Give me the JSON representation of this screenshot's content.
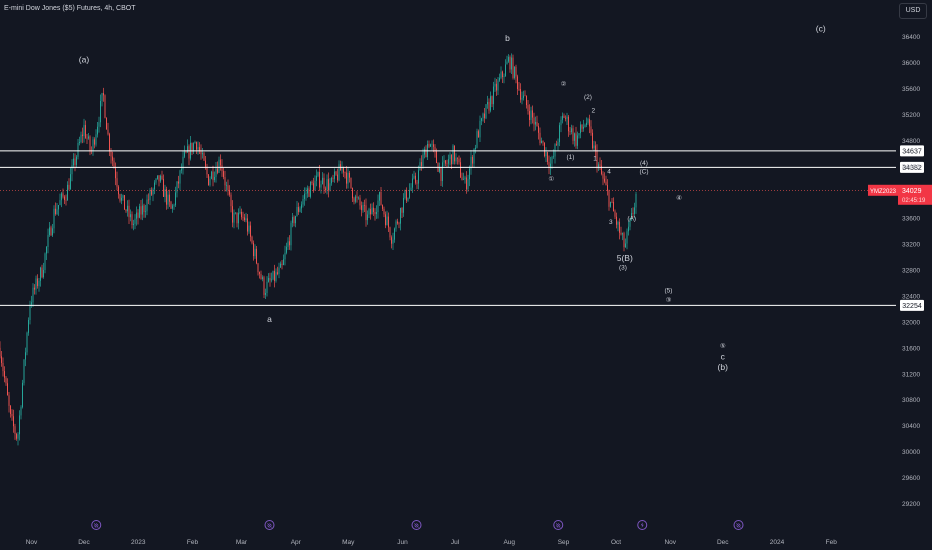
{
  "header": {
    "title": "E-mini Dow Jones ($5) Futures, 4h, CBOT",
    "currency_button": "USD"
  },
  "colors": {
    "background": "#131722",
    "up": "#26a69a",
    "down": "#ef5350",
    "text": "#d1d4dc",
    "axis_text": "#b2b5be",
    "level_line": "#ffffff",
    "event_icon": "#7e57c2",
    "price_badge": "#f23645"
  },
  "icons": [
    "event-icon",
    "lightning-icon"
  ],
  "chart_data": {
    "type": "candlestick",
    "symbol": "YMZ2023",
    "last_price": "34029",
    "countdown": "02:45:19",
    "y_range": [
      29070,
      36620
    ],
    "y_ticks": [
      29200,
      29600,
      30000,
      30400,
      30800,
      31200,
      31600,
      32000,
      32400,
      32800,
      33200,
      33600,
      34000,
      34400,
      34800,
      35200,
      35600,
      36000,
      36400
    ],
    "x_ticks": [
      "Nov",
      "Dec",
      "2023",
      "Feb",
      "Mar",
      "Apr",
      "May",
      "Jun",
      "Jul",
      "Aug",
      "Sep",
      "Oct",
      "Nov",
      "Dec",
      "2024",
      "Feb"
    ],
    "x_range": [
      "2022-10-14",
      "2024-03-09"
    ],
    "horizontal_levels": [
      {
        "label": "34637",
        "price": 34637
      },
      {
        "label": "34382",
        "price": 34382
      },
      {
        "label": "32254",
        "price": 32254
      }
    ],
    "price_path": [
      [
        "2022-10-14",
        31600
      ],
      [
        "2022-10-20",
        30500
      ],
      [
        "2022-10-24",
        30200
      ],
      [
        "2022-10-31",
        32300
      ],
      [
        "2022-11-07",
        32800
      ],
      [
        "2022-11-14",
        33700
      ],
      [
        "2022-11-21",
        34000
      ],
      [
        "2022-11-28",
        34700
      ],
      [
        "2022-12-01",
        35000
      ],
      [
        "2022-12-05",
        34600
      ],
      [
        "2022-12-12",
        35500
      ],
      [
        "2022-12-15",
        34800
      ],
      [
        "2022-12-22",
        33900
      ],
      [
        "2022-12-29",
        33500
      ],
      [
        "2023-01-05",
        33800
      ],
      [
        "2023-01-13",
        34200
      ],
      [
        "2023-01-20",
        33700
      ],
      [
        "2023-01-27",
        34500
      ],
      [
        "2023-02-03",
        34800
      ],
      [
        "2023-02-10",
        34200
      ],
      [
        "2023-02-17",
        34500
      ],
      [
        "2023-02-24",
        33600
      ],
      [
        "2023-03-03",
        33600
      ],
      [
        "2023-03-08",
        33100
      ],
      [
        "2023-03-14",
        32500
      ],
      [
        "2023-03-17",
        32600
      ],
      [
        "2023-03-24",
        32800
      ],
      [
        "2023-03-31",
        33600
      ],
      [
        "2023-04-07",
        34000
      ],
      [
        "2023-04-14",
        34200
      ],
      [
        "2023-04-21",
        34100
      ],
      [
        "2023-04-28",
        34400
      ],
      [
        "2023-05-05",
        33900
      ],
      [
        "2023-05-12",
        33600
      ],
      [
        "2023-05-19",
        33900
      ],
      [
        "2023-05-26",
        33300
      ],
      [
        "2023-06-02",
        33900
      ],
      [
        "2023-06-09",
        34200
      ],
      [
        "2023-06-16",
        34800
      ],
      [
        "2023-06-23",
        34300
      ],
      [
        "2023-06-30",
        34600
      ],
      [
        "2023-07-07",
        34100
      ],
      [
        "2023-07-14",
        34900
      ],
      [
        "2023-07-21",
        35400
      ],
      [
        "2023-07-28",
        35800
      ],
      [
        "2023-08-01",
        36050
      ],
      [
        "2023-08-08",
        35500
      ],
      [
        "2023-08-15",
        35100
      ],
      [
        "2023-08-22",
        34600
      ],
      [
        "2023-08-25",
        34400
      ],
      [
        "2023-09-01",
        35200
      ],
      [
        "2023-09-08",
        34800
      ],
      [
        "2023-09-14",
        35100
      ],
      [
        "2023-09-21",
        34400
      ],
      [
        "2023-09-27",
        33900
      ],
      [
        "2023-10-04",
        33300
      ],
      [
        "2023-10-06",
        33150
      ],
      [
        "2023-10-10",
        33600
      ],
      [
        "2023-10-13",
        34029
      ]
    ],
    "wave_labels": [
      {
        "text": "(a)",
        "date": "2022-12-01",
        "price": 36000
      },
      {
        "text": "a",
        "date": "2023-03-17",
        "price": 32000
      },
      {
        "text": "b",
        "date": "2023-07-31",
        "price": 36330
      },
      {
        "text": "(c)",
        "date": "2024-01-26",
        "price": 36480
      },
      {
        "text": "(b)",
        "date": "2023-12-01",
        "price": 31260
      },
      {
        "text": "c",
        "date": "2023-12-01",
        "price": 31420
      },
      {
        "text": "⑤",
        "date": "2023-12-01",
        "price": 31600
      },
      {
        "text": "④",
        "date": "2023-11-06",
        "price": 33880
      },
      {
        "text": "(5)",
        "date": "2023-10-31",
        "price": 32450
      },
      {
        "text": "③",
        "date": "2023-10-31",
        "price": 32310
      },
      {
        "text": "①",
        "date": "2023-08-25",
        "price": 34170
      },
      {
        "text": "②",
        "date": "2023-09-01",
        "price": 35640
      },
      {
        "text": "(1)",
        "date": "2023-09-05",
        "price": 34510
      },
      {
        "text": "(2)",
        "date": "2023-09-15",
        "price": 35440
      },
      {
        "text": "2",
        "date": "2023-09-18",
        "price": 35230
      },
      {
        "text": "1",
        "date": "2023-09-19",
        "price": 34490
      },
      {
        "text": "4",
        "date": "2023-09-27",
        "price": 34290
      },
      {
        "text": "3",
        "date": "2023-09-28",
        "price": 33510
      },
      {
        "text": "(4)",
        "date": "2023-10-17",
        "price": 34420
      },
      {
        "text": "(C)",
        "date": "2023-10-17",
        "price": 34290
      },
      {
        "text": "(A)",
        "date": "2023-10-10",
        "price": 33560
      },
      {
        "text": "5(B)",
        "date": "2023-10-06",
        "price": 32940
      },
      {
        "text": "(3)",
        "date": "2023-10-05",
        "price": 32810
      }
    ],
    "event_icon_dates": [
      "2022-12-08",
      "2023-03-17",
      "2023-06-09",
      "2023-08-29",
      "2023-10-16",
      "2023-12-10"
    ],
    "lightning_icon_dates": [
      "2023-10-16"
    ],
    "grid": false
  }
}
